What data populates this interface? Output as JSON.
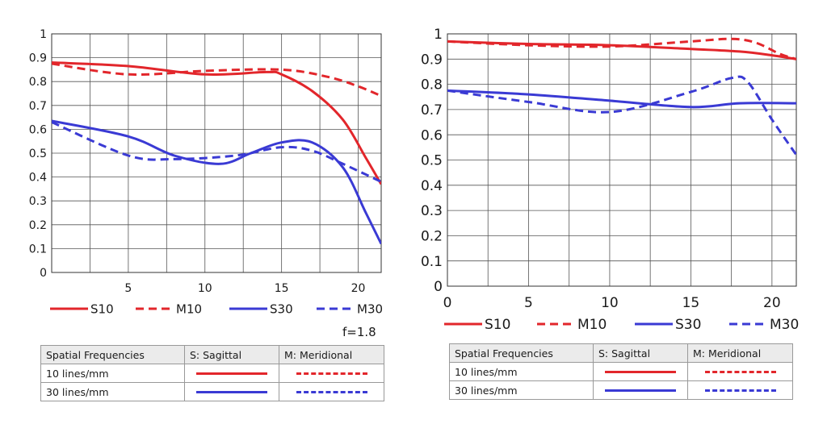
{
  "colors": {
    "red": "#e2262b",
    "blue": "#3a3ad4",
    "grid": "#555555"
  },
  "chart_data": [
    {
      "type": "line",
      "xlim": [
        0,
        21.5
      ],
      "ylim": [
        0,
        1
      ],
      "x_ticks": [
        "5",
        "10",
        "15",
        "20"
      ],
      "y_ticks": [
        "0",
        "0.1",
        "0.2",
        "0.3",
        "0.4",
        "0.5",
        "0.6",
        "0.7",
        "0.8",
        "0.9",
        "1"
      ],
      "grid": true,
      "legend": "bottom",
      "series": [
        {
          "name": "S10",
          "style": "solid",
          "color": "red",
          "x": [
            0,
            5,
            10,
            14,
            15,
            17,
            19,
            20.5,
            21.5
          ],
          "y": [
            0.88,
            0.865,
            0.83,
            0.84,
            0.83,
            0.76,
            0.64,
            0.48,
            0.37
          ]
        },
        {
          "name": "M10",
          "style": "dashed",
          "color": "red",
          "x": [
            0,
            5,
            10,
            15,
            18,
            20,
            21.5
          ],
          "y": [
            0.875,
            0.83,
            0.845,
            0.85,
            0.82,
            0.78,
            0.74
          ]
        },
        {
          "name": "S30",
          "style": "solid",
          "color": "blue",
          "x": [
            0,
            5,
            8,
            11,
            13,
            15,
            17,
            19,
            20.5,
            21.5
          ],
          "y": [
            0.635,
            0.57,
            0.49,
            0.455,
            0.5,
            0.545,
            0.545,
            0.44,
            0.25,
            0.12
          ]
        },
        {
          "name": "M30",
          "style": "dashed",
          "color": "blue",
          "x": [
            0,
            5,
            8,
            12,
            15,
            17,
            19,
            21.5
          ],
          "y": [
            0.63,
            0.49,
            0.475,
            0.49,
            0.525,
            0.51,
            0.455,
            0.38
          ]
        }
      ]
    },
    {
      "type": "line",
      "xlim": [
        0,
        21.5
      ],
      "ylim": [
        0,
        1
      ],
      "x_ticks": [
        "0",
        "5",
        "10",
        "15",
        "20"
      ],
      "y_ticks": [
        "0",
        "0.1",
        "0.2",
        "0.3",
        "0.4",
        "0.5",
        "0.6",
        "0.7",
        "0.8",
        "0.9",
        "1"
      ],
      "grid": true,
      "legend": "bottom",
      "series": [
        {
          "name": "S10",
          "style": "solid",
          "color": "red",
          "x": [
            0,
            5,
            10,
            15,
            18,
            20,
            21.5
          ],
          "y": [
            0.97,
            0.96,
            0.955,
            0.94,
            0.93,
            0.915,
            0.9
          ]
        },
        {
          "name": "M10",
          "style": "dashed",
          "color": "red",
          "x": [
            0,
            5,
            10,
            15,
            17.5,
            19,
            20.5,
            21.5
          ],
          "y": [
            0.97,
            0.955,
            0.95,
            0.97,
            0.98,
            0.965,
            0.92,
            0.9
          ]
        },
        {
          "name": "S30",
          "style": "solid",
          "color": "blue",
          "x": [
            0,
            5,
            10,
            15,
            18,
            21.5
          ],
          "y": [
            0.775,
            0.76,
            0.735,
            0.71,
            0.725,
            0.725
          ]
        },
        {
          "name": "M30",
          "style": "dashed",
          "color": "blue",
          "x": [
            0,
            5,
            10,
            15,
            17.5,
            18.5,
            20,
            21.5
          ],
          "y": [
            0.775,
            0.73,
            0.69,
            0.77,
            0.825,
            0.81,
            0.66,
            0.52
          ]
        }
      ]
    }
  ],
  "aperture_label": "f=1.8",
  "tables": [
    {
      "header": [
        "Spatial Frequencies",
        "S: Sagittal",
        "M: Meridional"
      ],
      "rows": [
        {
          "label": "10 lines/mm"
        },
        {
          "label": "30 lines/mm"
        }
      ]
    },
    {
      "header": [
        "Spatial Frequencies",
        "S: Sagittal",
        "M: Meridional"
      ],
      "rows": [
        {
          "label": "10 lines/mm"
        },
        {
          "label": "30 lines/mm"
        }
      ]
    }
  ]
}
